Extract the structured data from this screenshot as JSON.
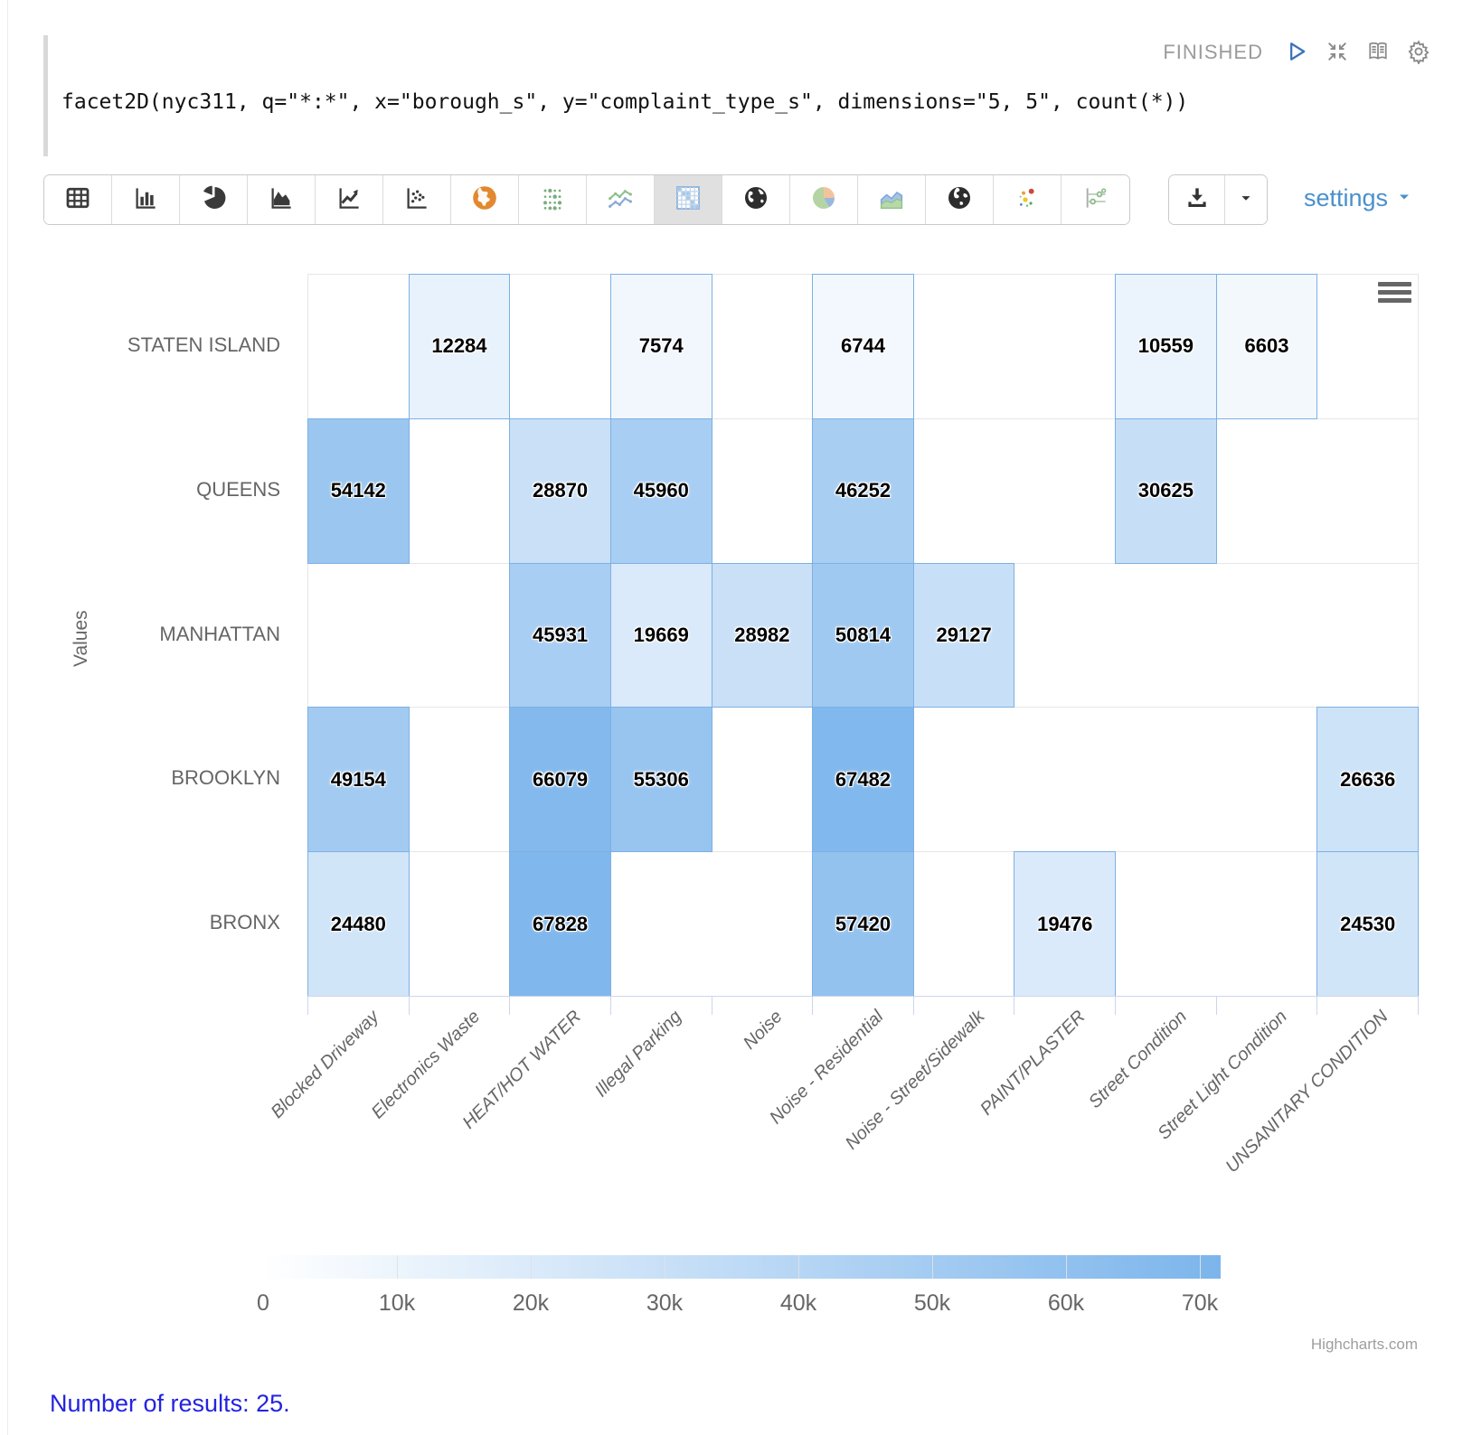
{
  "paragraph": {
    "status": "FINISHED",
    "code": "facet2D(nyc311, q=\"*:*\", x=\"borough_s\", y=\"complaint_type_s\", dimensions=\"5, 5\", count(*))"
  },
  "toolbar": {
    "buttons": [
      {
        "id": "table"
      },
      {
        "id": "bar-chart"
      },
      {
        "id": "pie-chart"
      },
      {
        "id": "area-chart"
      },
      {
        "id": "line-chart"
      },
      {
        "id": "scatter-plot"
      },
      {
        "id": "world-map"
      },
      {
        "id": "dot-grid"
      },
      {
        "id": "multi-line"
      },
      {
        "id": "heatmap",
        "selected": true
      },
      {
        "id": "globe"
      },
      {
        "id": "pie-colored"
      },
      {
        "id": "area-colored"
      },
      {
        "id": "globe-alt"
      },
      {
        "id": "scatter-colored"
      },
      {
        "id": "range-filter"
      }
    ],
    "settings_label": "settings"
  },
  "chart_data": {
    "type": "heatmap",
    "x_categories": [
      "Blocked Driveway",
      "Electronics Waste",
      "HEAT/HOT WATER",
      "Illegal Parking",
      "Noise",
      "Noise - Residential",
      "Noise - Street/Sidewalk",
      "PAINT/PLASTER",
      "Street Condition",
      "Street Light Condition",
      "UNSANITARY CONDITION"
    ],
    "y_categories": [
      "STATEN ISLAND",
      "QUEENS",
      "MANHATTAN",
      "BROOKLYN",
      "BRONX"
    ],
    "ylabel": "Values",
    "rows": [
      {
        "label": "STATEN ISLAND",
        "values": [
          null,
          12284,
          null,
          7574,
          null,
          6744,
          null,
          null,
          10559,
          6603,
          null
        ]
      },
      {
        "label": "QUEENS",
        "values": [
          54142,
          null,
          28870,
          45960,
          null,
          46252,
          null,
          null,
          30625,
          null,
          null
        ]
      },
      {
        "label": "MANHATTAN",
        "values": [
          null,
          null,
          45931,
          19669,
          28982,
          50814,
          29127,
          null,
          null,
          null,
          null
        ]
      },
      {
        "label": "BROOKLYN",
        "values": [
          49154,
          null,
          66079,
          55306,
          null,
          67482,
          null,
          null,
          null,
          null,
          26636
        ]
      },
      {
        "label": "BRONX",
        "values": [
          24480,
          null,
          67828,
          null,
          null,
          57420,
          null,
          19476,
          null,
          null,
          24530
        ]
      }
    ],
    "color_axis": {
      "min": 0,
      "max": 70000,
      "min_color": "#ffffff",
      "max_color": "#7cb5ec",
      "tick_labels": [
        "0",
        "10k",
        "20k",
        "30k",
        "40k",
        "50k",
        "60k",
        "70k"
      ]
    },
    "credits": "Highcharts.com"
  },
  "footer": {
    "results": "Number of results: 25."
  }
}
